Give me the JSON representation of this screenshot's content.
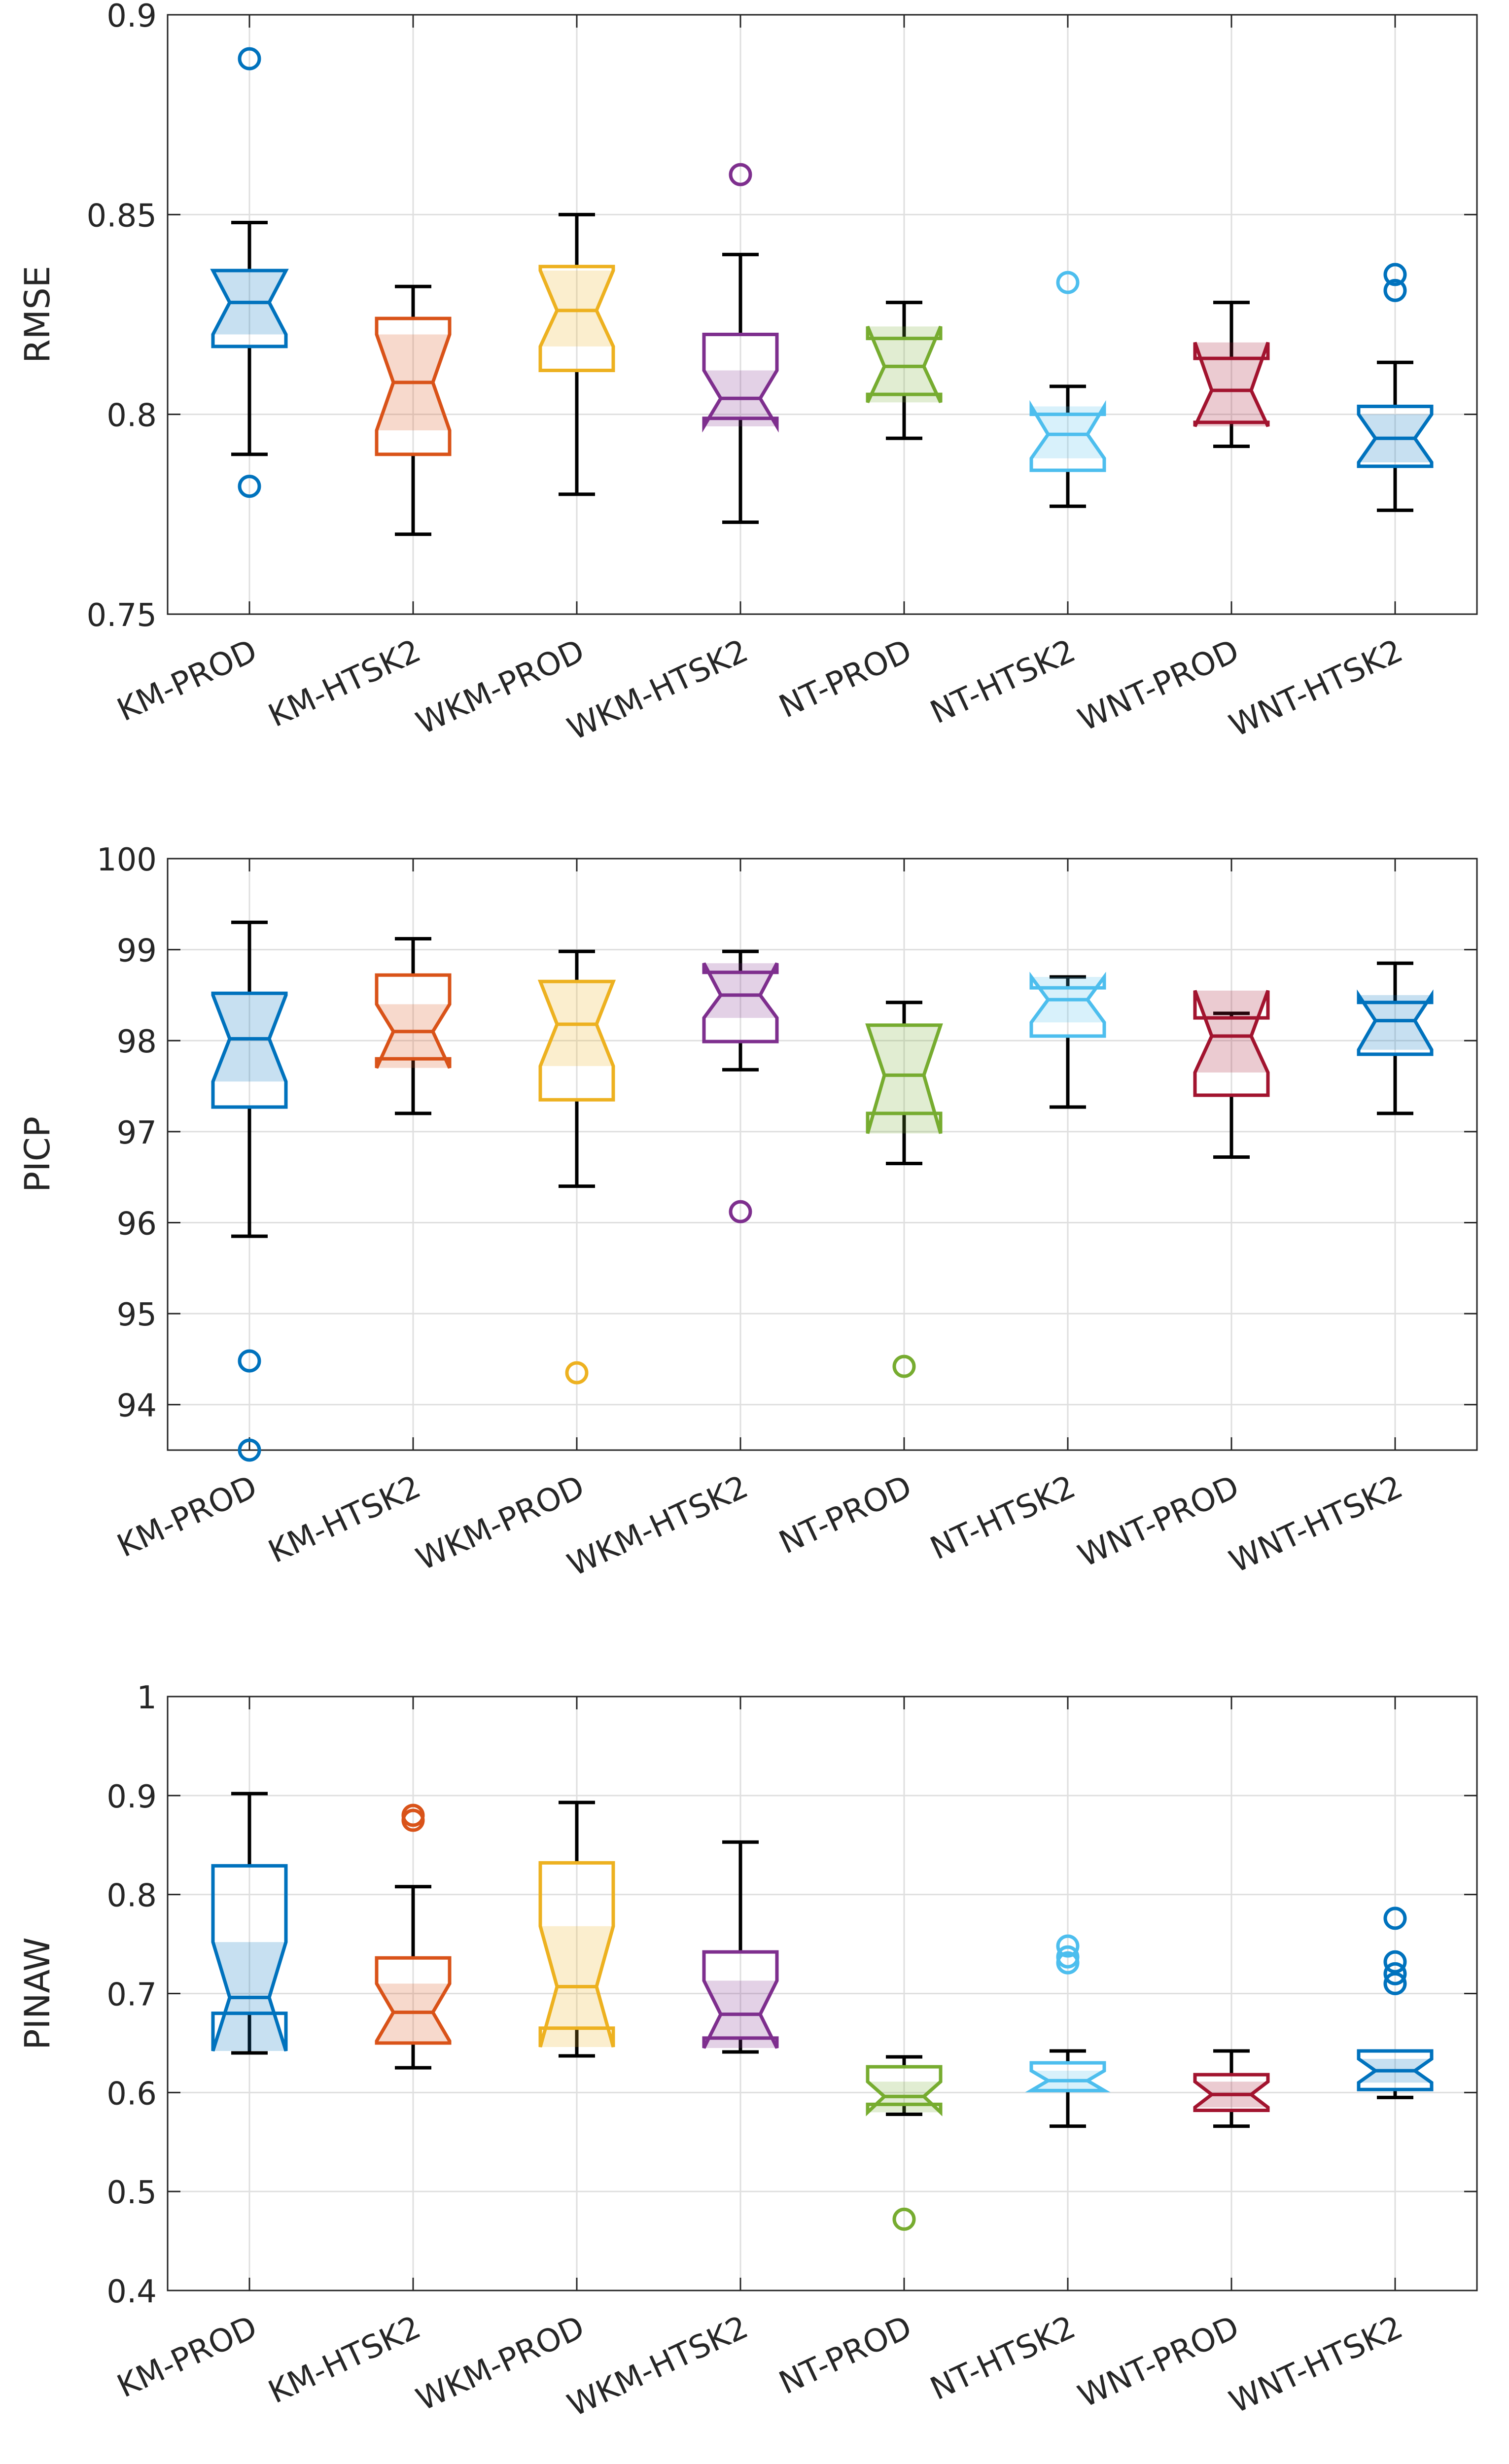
{
  "chart_data": [
    {
      "type": "boxplot",
      "ylabel": "RMSE",
      "ylim": [
        0.75,
        0.9
      ],
      "yticks": [
        0.75,
        0.8,
        0.85,
        0.9
      ],
      "ytick_labels": [
        "0.75",
        "0.8",
        "0.85",
        "0.9"
      ],
      "grid": true,
      "categories": [
        "KM-PROD",
        "KM-HTSK2",
        "WKM-PROD",
        "WKM-HTSK2",
        "NT-PROD",
        "NT-HTSK2",
        "WNT-PROD",
        "WNT-HTSK2"
      ],
      "colors": [
        "#0072BD",
        "#D95319",
        "#EDB120",
        "#7E2F8E",
        "#77AC30",
        "#4DBEEE",
        "#A2142F",
        "#0072BD"
      ],
      "boxes": [
        {
          "q1": 0.817,
          "median": 0.828,
          "q3": 0.836,
          "notch_lo": 0.82,
          "notch_hi": 0.836,
          "wlo": 0.79,
          "whi": 0.848,
          "outliers": [
            0.782,
            0.889
          ]
        },
        {
          "q1": 0.79,
          "median": 0.808,
          "q3": 0.824,
          "notch_lo": 0.796,
          "notch_hi": 0.82,
          "wlo": 0.77,
          "whi": 0.832,
          "outliers": []
        },
        {
          "q1": 0.811,
          "median": 0.826,
          "q3": 0.837,
          "notch_lo": 0.817,
          "notch_hi": 0.836,
          "wlo": 0.78,
          "whi": 0.85,
          "outliers": []
        },
        {
          "q1": 0.799,
          "median": 0.804,
          "q3": 0.82,
          "notch_lo": 0.797,
          "notch_hi": 0.811,
          "wlo": 0.773,
          "whi": 0.84,
          "outliers": [
            0.86
          ]
        },
        {
          "q1": 0.805,
          "median": 0.812,
          "q3": 0.819,
          "notch_lo": 0.803,
          "notch_hi": 0.822,
          "wlo": 0.794,
          "whi": 0.828,
          "outliers": []
        },
        {
          "q1": 0.786,
          "median": 0.795,
          "q3": 0.8,
          "notch_lo": 0.789,
          "notch_hi": 0.802,
          "wlo": 0.777,
          "whi": 0.807,
          "outliers": [
            0.833
          ]
        },
        {
          "q1": 0.798,
          "median": 0.806,
          "q3": 0.814,
          "notch_lo": 0.797,
          "notch_hi": 0.818,
          "wlo": 0.792,
          "whi": 0.828,
          "outliers": []
        },
        {
          "q1": 0.787,
          "median": 0.794,
          "q3": 0.802,
          "notch_lo": 0.788,
          "notch_hi": 0.8,
          "wlo": 0.776,
          "whi": 0.813,
          "outliers": [
            0.831,
            0.835
          ]
        }
      ]
    },
    {
      "type": "boxplot",
      "ylabel": "PICP",
      "ylim": [
        93.5,
        100
      ],
      "yticks": [
        94,
        95,
        96,
        97,
        98,
        99,
        100
      ],
      "ytick_labels": [
        "94",
        "95",
        "96",
        "97",
        "98",
        "99",
        "100"
      ],
      "grid": true,
      "categories": [
        "KM-PROD",
        "KM-HTSK2",
        "WKM-PROD",
        "WKM-HTSK2",
        "NT-PROD",
        "NT-HTSK2",
        "WNT-PROD",
        "WNT-HTSK2"
      ],
      "colors": [
        "#0072BD",
        "#D95319",
        "#EDB120",
        "#7E2F8E",
        "#77AC30",
        "#4DBEEE",
        "#A2142F",
        "#0072BD"
      ],
      "boxes": [
        {
          "q1": 97.27,
          "median": 98.02,
          "q3": 98.52,
          "notch_lo": 97.55,
          "notch_hi": 98.5,
          "wlo": 95.85,
          "whi": 99.3,
          "outliers": [
            94.48,
            93.5
          ]
        },
        {
          "q1": 97.8,
          "median": 98.1,
          "q3": 98.72,
          "notch_lo": 97.7,
          "notch_hi": 98.4,
          "wlo": 97.2,
          "whi": 99.12,
          "outliers": []
        },
        {
          "q1": 97.35,
          "median": 98.18,
          "q3": 98.65,
          "notch_lo": 97.72,
          "notch_hi": 98.65,
          "wlo": 96.4,
          "whi": 98.98,
          "outliers": [
            94.35
          ]
        },
        {
          "q1": 97.99,
          "median": 98.5,
          "q3": 98.75,
          "notch_lo": 98.25,
          "notch_hi": 98.85,
          "wlo": 97.68,
          "whi": 98.98,
          "outliers": [
            96.12
          ]
        },
        {
          "q1": 97.2,
          "median": 97.62,
          "q3": 98.17,
          "notch_lo": 96.98,
          "notch_hi": 98.17,
          "wlo": 96.65,
          "whi": 98.42,
          "outliers": [
            94.42
          ]
        },
        {
          "q1": 98.05,
          "median": 98.45,
          "q3": 98.58,
          "notch_lo": 98.2,
          "notch_hi": 98.7,
          "wlo": 97.27,
          "whi": 98.7,
          "outliers": []
        },
        {
          "q1": 97.4,
          "median": 98.05,
          "q3": 98.25,
          "notch_lo": 97.65,
          "notch_hi": 98.55,
          "wlo": 96.72,
          "whi": 98.3,
          "outliers": []
        },
        {
          "q1": 97.85,
          "median": 98.22,
          "q3": 98.42,
          "notch_lo": 97.9,
          "notch_hi": 98.5,
          "wlo": 97.2,
          "whi": 98.85,
          "outliers": []
        }
      ]
    },
    {
      "type": "boxplot",
      "ylabel": "PINAW",
      "ylim": [
        0.4,
        1.0
      ],
      "yticks": [
        0.4,
        0.5,
        0.6,
        0.7,
        0.8,
        0.9,
        1.0
      ],
      "ytick_labels": [
        "0.4",
        "0.5",
        "0.6",
        "0.7",
        "0.8",
        "0.9",
        "1"
      ],
      "grid": true,
      "categories": [
        "KM-PROD",
        "KM-HTSK2",
        "WKM-PROD",
        "WKM-HTSK2",
        "NT-PROD",
        "NT-HTSK2",
        "WNT-PROD",
        "WNT-HTSK2"
      ],
      "colors": [
        "#0072BD",
        "#D95319",
        "#EDB120",
        "#7E2F8E",
        "#77AC30",
        "#4DBEEE",
        "#A2142F",
        "#0072BD"
      ],
      "boxes": [
        {
          "q1": 0.68,
          "median": 0.696,
          "q3": 0.829,
          "notch_lo": 0.642,
          "notch_hi": 0.752,
          "wlo": 0.64,
          "whi": 0.902,
          "outliers": []
        },
        {
          "q1": 0.65,
          "median": 0.681,
          "q3": 0.736,
          "notch_lo": 0.652,
          "notch_hi": 0.71,
          "wlo": 0.625,
          "whi": 0.808,
          "outliers": [
            0.875,
            0.88
          ]
        },
        {
          "q1": 0.665,
          "median": 0.707,
          "q3": 0.832,
          "notch_lo": 0.646,
          "notch_hi": 0.768,
          "wlo": 0.637,
          "whi": 0.893,
          "outliers": []
        },
        {
          "q1": 0.655,
          "median": 0.679,
          "q3": 0.742,
          "notch_lo": 0.645,
          "notch_hi": 0.713,
          "wlo": 0.641,
          "whi": 0.853,
          "outliers": []
        },
        {
          "q1": 0.588,
          "median": 0.596,
          "q3": 0.626,
          "notch_lo": 0.58,
          "notch_hi": 0.611,
          "wlo": 0.578,
          "whi": 0.636,
          "outliers": [
            0.472
          ]
        },
        {
          "q1": 0.602,
          "median": 0.612,
          "q3": 0.63,
          "notch_lo": 0.602,
          "notch_hi": 0.622,
          "wlo": 0.566,
          "whi": 0.642,
          "outliers": [
            0.731,
            0.737,
            0.748
          ]
        },
        {
          "q1": 0.582,
          "median": 0.598,
          "q3": 0.618,
          "notch_lo": 0.585,
          "notch_hi": 0.611,
          "wlo": 0.566,
          "whi": 0.642,
          "outliers": []
        },
        {
          "q1": 0.603,
          "median": 0.622,
          "q3": 0.642,
          "notch_lo": 0.61,
          "notch_hi": 0.634,
          "wlo": 0.595,
          "whi": 0.642,
          "outliers": [
            0.71,
            0.72,
            0.732,
            0.776
          ]
        }
      ]
    }
  ]
}
